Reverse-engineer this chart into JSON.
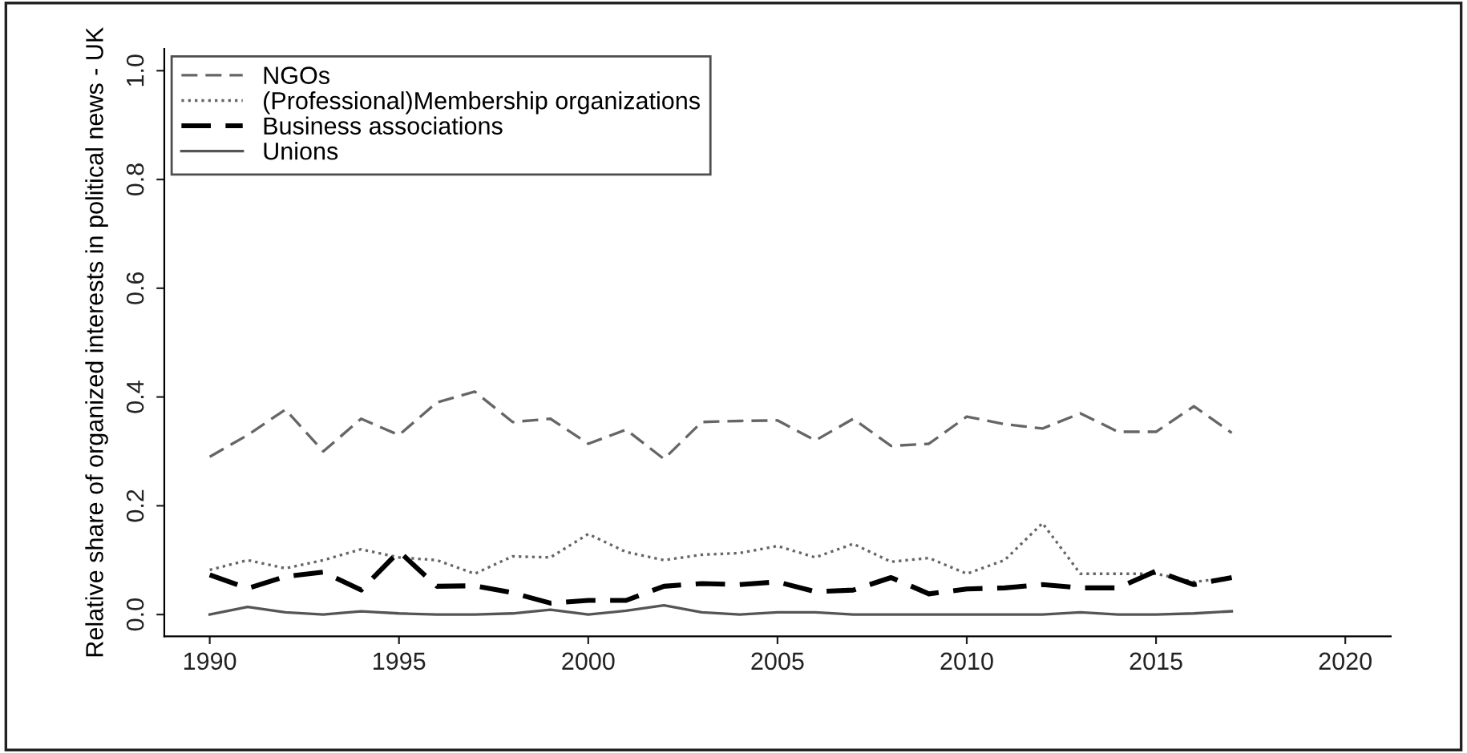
{
  "chart_data": {
    "type": "line",
    "ylabel": "Relative share of organized interests in political news - UK",
    "x": [
      1990,
      1991,
      1992,
      1993,
      1994,
      1995,
      1996,
      1997,
      1998,
      1999,
      2000,
      2001,
      2002,
      2003,
      2004,
      2005,
      2006,
      2007,
      2008,
      2009,
      2010,
      2011,
      2012,
      2013,
      2014,
      2015,
      2016,
      2017
    ],
    "series": [
      {
        "name": "NGOs",
        "color": "#666666",
        "line_style": "dashed",
        "values": [
          0.29,
          0.33,
          0.377,
          0.3,
          0.36,
          0.33,
          0.39,
          0.41,
          0.354,
          0.36,
          0.314,
          0.34,
          0.286,
          0.354,
          0.356,
          0.357,
          0.32,
          0.36,
          0.31,
          0.314,
          0.364,
          0.35,
          0.342,
          0.37,
          0.336,
          0.336,
          0.383,
          0.334
        ]
      },
      {
        "name": "(Professional)Membership organizations",
        "color": "#666666",
        "line_style": "dotted",
        "values": [
          0.082,
          0.1,
          0.085,
          0.1,
          0.12,
          0.105,
          0.1,
          0.075,
          0.107,
          0.105,
          0.148,
          0.115,
          0.1,
          0.11,
          0.113,
          0.126,
          0.105,
          0.13,
          0.097,
          0.104,
          0.075,
          0.1,
          0.168,
          0.075,
          0.075,
          0.075,
          0.06,
          0.068
        ]
      },
      {
        "name": "Business associations",
        "color": "#000000",
        "line_style": "dashed",
        "values": [
          0.073,
          0.048,
          0.07,
          0.078,
          0.045,
          0.116,
          0.052,
          0.053,
          0.04,
          0.021,
          0.026,
          0.026,
          0.052,
          0.057,
          0.055,
          0.06,
          0.042,
          0.045,
          0.068,
          0.038,
          0.047,
          0.049,
          0.055,
          0.049,
          0.049,
          0.08,
          0.055,
          0.068
        ]
      },
      {
        "name": "Unions",
        "color": "#555555",
        "line_style": "solid",
        "values": [
          0.0,
          0.014,
          0.004,
          0.0,
          0.006,
          0.002,
          0.0,
          0.0,
          0.002,
          0.009,
          0.0,
          0.007,
          0.017,
          0.004,
          0.0,
          0.004,
          0.004,
          0.0,
          0.0,
          0.0,
          0.0,
          0.0,
          0.0,
          0.004,
          0.0,
          0.0,
          0.002,
          0.006
        ]
      }
    ],
    "xlim": [
      1988.8,
      2021.2
    ],
    "xticks": [
      1990,
      1995,
      2000,
      2005,
      2010,
      2015,
      2020
    ],
    "ylim": [
      -0.04,
      1.04
    ],
    "yticks": [
      {
        "value": 0,
        "label": "0.0"
      },
      {
        "value": 0.2,
        "label": "0.2"
      },
      {
        "value": 0.4,
        "label": "0.4"
      },
      {
        "value": 0.6,
        "label": "0.6"
      },
      {
        "value": 0.8,
        "label": "0.8"
      },
      {
        "value": 1,
        "label": "1.0"
      }
    ],
    "legend": "top left",
    "grid": false
  }
}
